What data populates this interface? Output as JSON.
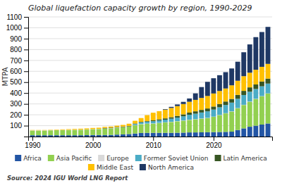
{
  "chart_data": {
    "type": "bar",
    "stacked": true,
    "title": "Global liquefaction capacity growth by region, 1990-2029",
    "y_label": "MTPA",
    "annotations": [
      "Source: 2024 IGU World LNG Report"
    ],
    "x": [
      1990,
      1991,
      1992,
      1993,
      1994,
      1995,
      1996,
      1997,
      1998,
      1999,
      2000,
      2001,
      2002,
      2003,
      2004,
      2005,
      2006,
      2007,
      2008,
      2009,
      2010,
      2011,
      2012,
      2013,
      2014,
      2015,
      2016,
      2017,
      2018,
      2019,
      2020,
      2021,
      2022,
      2023,
      2024,
      2025,
      2026,
      2027,
      2028,
      2029
    ],
    "xlim": [
      1989.3,
      2029.7
    ],
    "xticks": [
      1990,
      2000,
      2010,
      2020
    ],
    "ylim": [
      0,
      1100
    ],
    "yticks": [
      100,
      200,
      300,
      400,
      500,
      600,
      700,
      800,
      900,
      1000,
      1100
    ],
    "grid": true,
    "legend": "bottom",
    "series": [
      {
        "name": "Africa",
        "color": "#2255a4",
        "values": [
          12,
          12,
          12,
          12,
          12,
          12,
          12,
          12,
          12,
          13,
          14,
          14,
          14,
          15,
          18,
          20,
          23,
          28,
          33,
          34,
          34,
          34,
          34,
          34,
          35,
          36,
          38,
          38,
          39,
          40,
          41,
          42,
          43,
          45,
          60,
          75,
          90,
          100,
          110,
          120
        ]
      },
      {
        "name": "Asia Pacific",
        "color": "#92d050",
        "values": [
          43,
          43,
          43,
          45,
          46,
          47,
          48,
          49,
          50,
          51,
          53,
          55,
          58,
          60,
          63,
          65,
          68,
          75,
          80,
          83,
          85,
          90,
          95,
          100,
          105,
          110,
          115,
          120,
          125,
          130,
          140,
          155,
          170,
          185,
          200,
          215,
          230,
          245,
          260,
          275
        ]
      },
      {
        "name": "Europe",
        "color": "#d9d9d9",
        "values": [
          2,
          2,
          2,
          2,
          2,
          2,
          2,
          2,
          2,
          2,
          2,
          2,
          2,
          2,
          2,
          2,
          2,
          2,
          2,
          2,
          2,
          2,
          2,
          2,
          2,
          2,
          2,
          2,
          2,
          2,
          2,
          2,
          2,
          2,
          2,
          2,
          2,
          2,
          2,
          2
        ]
      },
      {
        "name": "Former Soviet Union",
        "color": "#4bacc6",
        "values": [
          0,
          0,
          0,
          0,
          0,
          0,
          0,
          0,
          0,
          0,
          0,
          0,
          0,
          0,
          0,
          0,
          0,
          10,
          15,
          18,
          20,
          22,
          24,
          28,
          32,
          38,
          45,
          50,
          55,
          60,
          65,
          70,
          75,
          80,
          85,
          90,
          90,
          90,
          90,
          90
        ]
      },
      {
        "name": "Latin America",
        "color": "#375623",
        "values": [
          0,
          0,
          0,
          0,
          0,
          0,
          0,
          0,
          0,
          0,
          0,
          0,
          5,
          5,
          5,
          5,
          5,
          5,
          5,
          5,
          8,
          10,
          12,
          14,
          16,
          18,
          20,
          22,
          24,
          26,
          28,
          30,
          32,
          34,
          36,
          38,
          40,
          42,
          44,
          46
        ]
      },
      {
        "name": "Middle East",
        "color": "#ffc000",
        "values": [
          3,
          3,
          3,
          3,
          4,
          5,
          6,
          7,
          8,
          9,
          10,
          10,
          10,
          10,
          12,
          15,
          20,
          25,
          35,
          55,
          70,
          75,
          80,
          85,
          90,
          95,
          100,
          105,
          110,
          115,
          120,
          120,
          120,
          125,
          130,
          135,
          135,
          135,
          135,
          135
        ]
      },
      {
        "name": "North America",
        "color": "#1f3864",
        "values": [
          0,
          0,
          0,
          0,
          0,
          0,
          0,
          0,
          0,
          0,
          0,
          0,
          0,
          0,
          0,
          0,
          0,
          0,
          0,
          0,
          0,
          0,
          5,
          10,
          15,
          20,
          30,
          60,
          100,
          130,
          140,
          145,
          150,
          155,
          175,
          220,
          260,
          300,
          320,
          340
        ]
      }
    ]
  }
}
